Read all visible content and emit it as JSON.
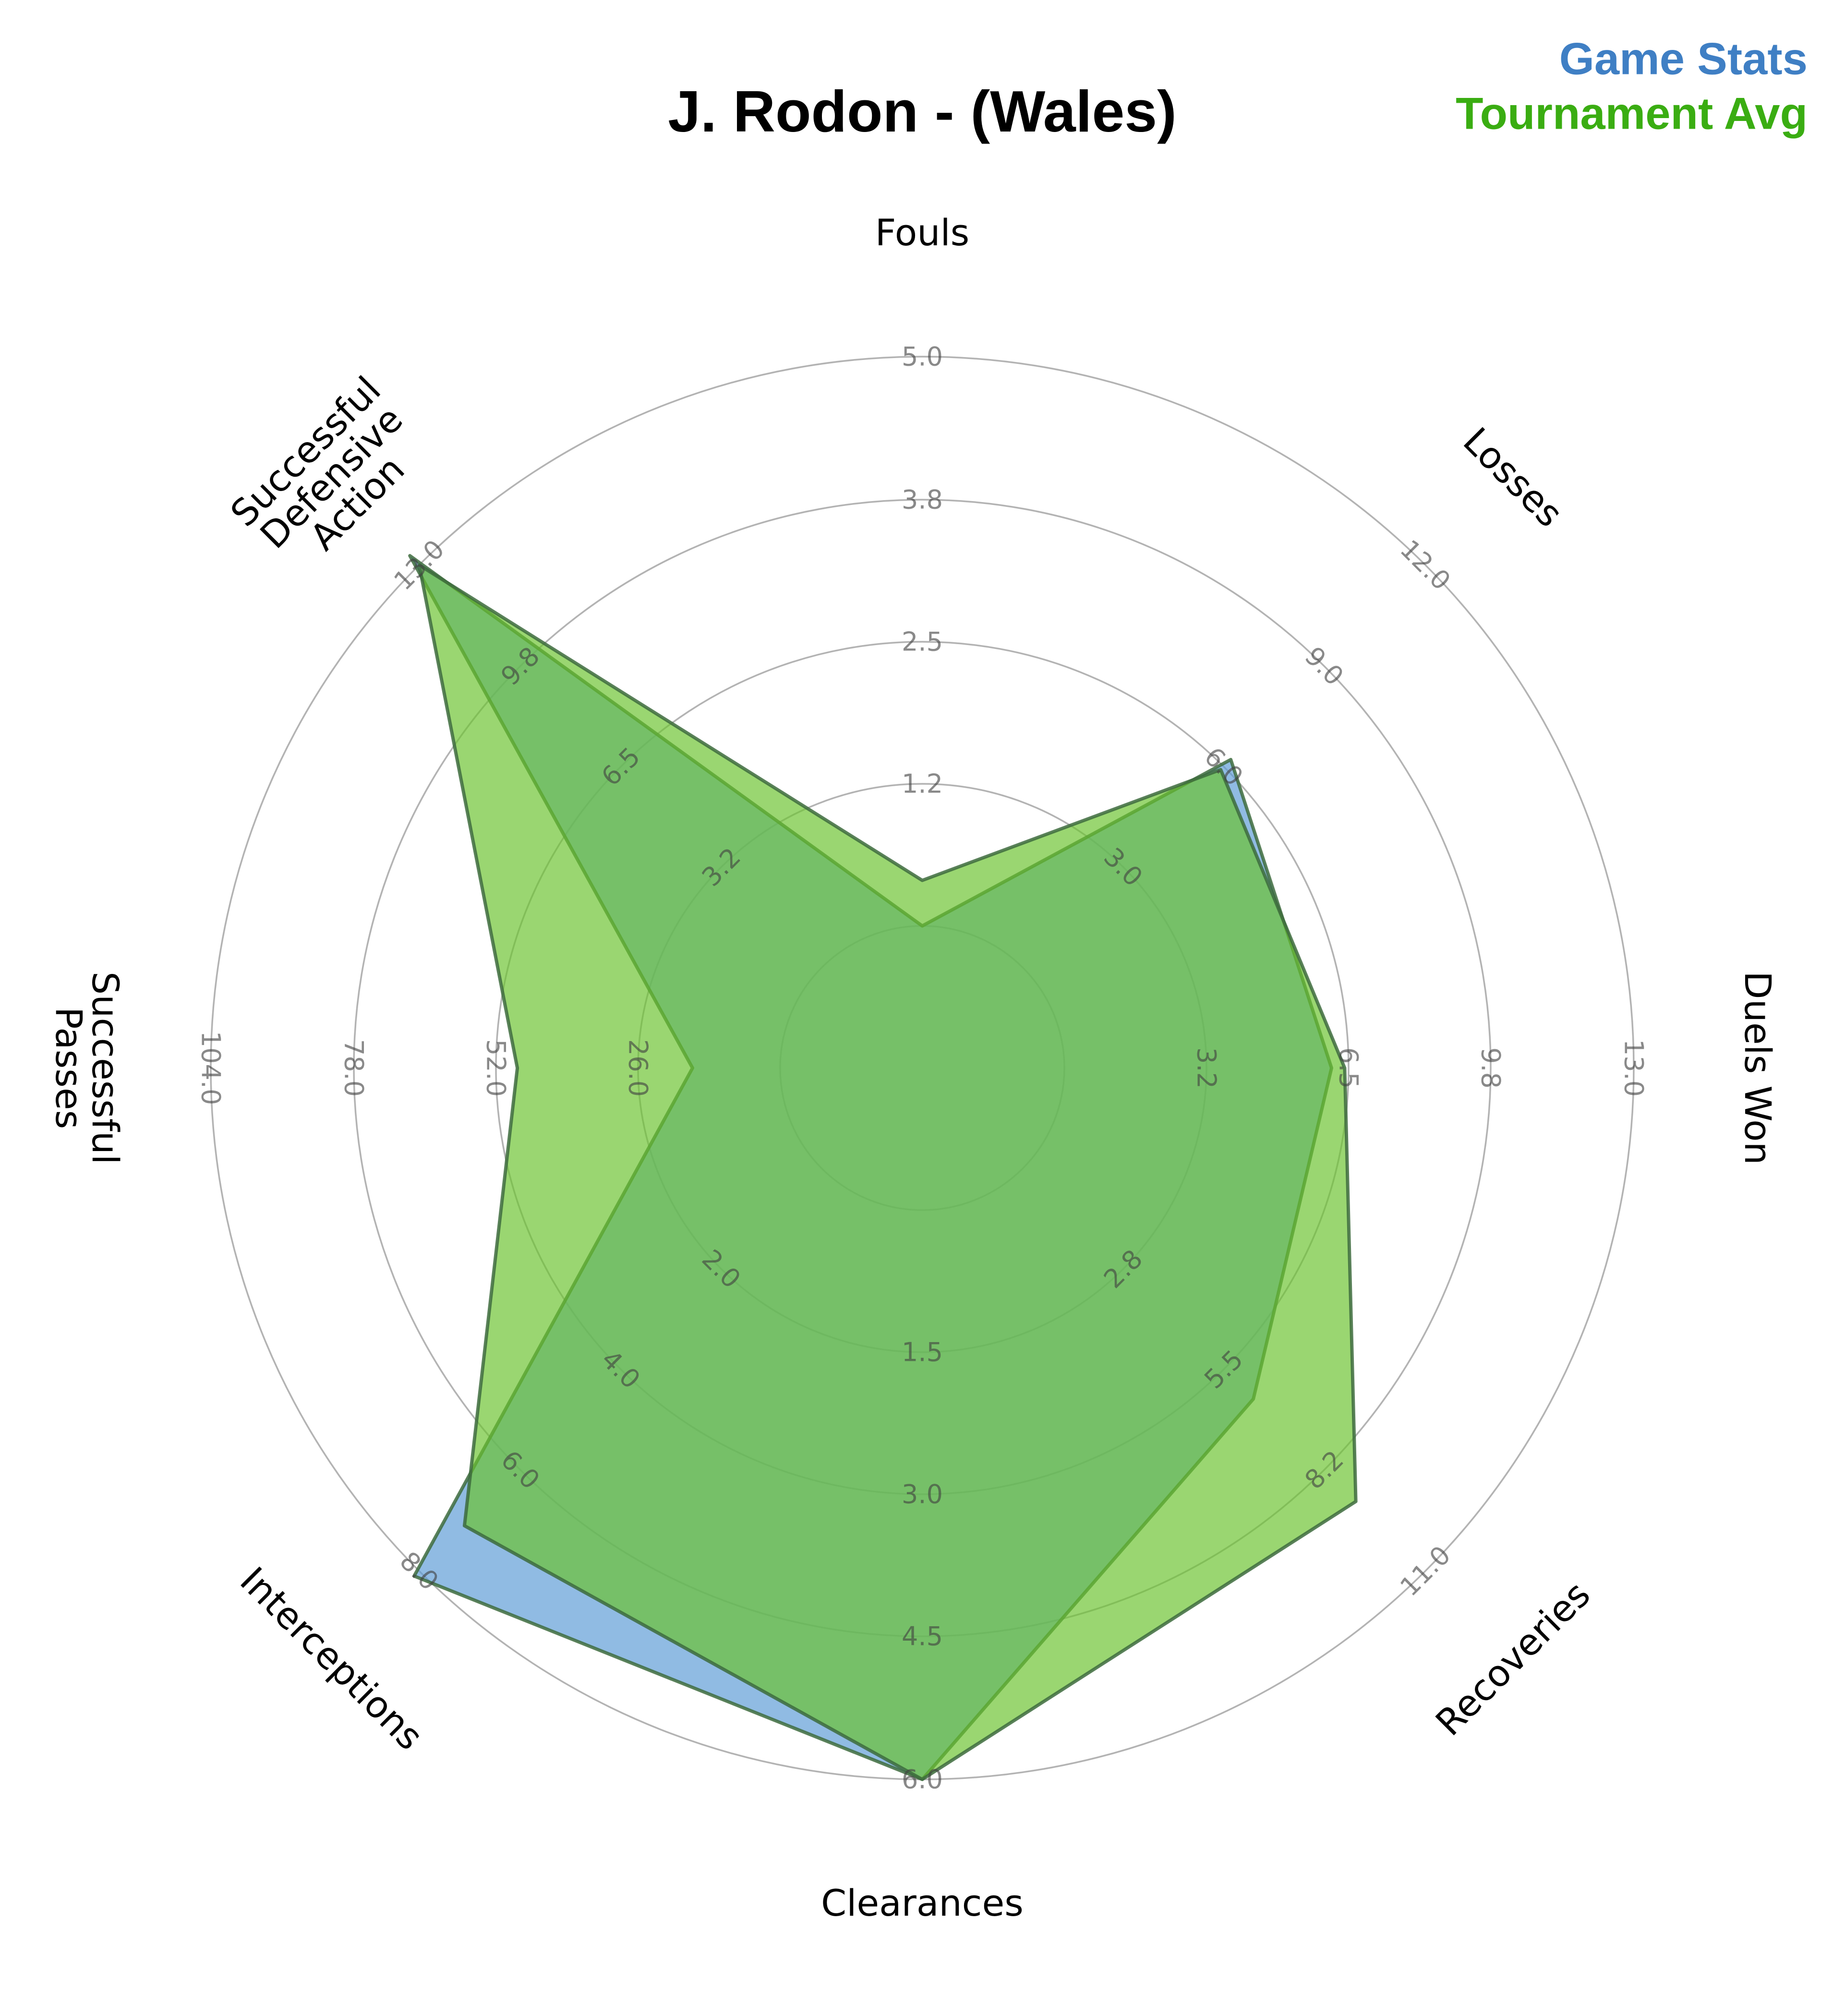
{
  "chart_data": {
    "type": "radar",
    "title": "J. Rodon - (Wales)",
    "axes": [
      {
        "label": "Fouls",
        "min": 0,
        "max": 5,
        "ticks": [
          "1.2",
          "2.5",
          "3.8",
          "5.0"
        ]
      },
      {
        "label": "Losses",
        "min": 0,
        "max": 12,
        "ticks": [
          "3.0",
          "6.0",
          "9.0",
          "12.0"
        ]
      },
      {
        "label": "Duels Won",
        "min": 0,
        "max": 13,
        "ticks": [
          "3.2",
          "6.5",
          "9.8",
          "13.0"
        ]
      },
      {
        "label": "Recoveries",
        "min": 0,
        "max": 11,
        "ticks": [
          "2.8",
          "5.5",
          "8.2",
          "11.0"
        ]
      },
      {
        "label": "Clearances",
        "min": 0,
        "max": 6,
        "ticks": [
          "1.5",
          "3.0",
          "4.5",
          "6.0"
        ]
      },
      {
        "label": "Interceptions",
        "min": 0,
        "max": 8,
        "ticks": [
          "2.0",
          "4.0",
          "6.0",
          "8.0"
        ]
      },
      {
        "label": "Successful Passes",
        "min": 0,
        "max": 104,
        "ticks": [
          "26.0",
          "52.0",
          "78.0",
          "104.0"
        ]
      },
      {
        "label": "Successful Defensive Action",
        "min": 0,
        "max": 13,
        "ticks": [
          "3.2",
          "6.5",
          "9.8",
          "13.0"
        ]
      }
    ],
    "series": [
      {
        "name": "Game Stats",
        "color": "#3f7fc4",
        "fill": "#5b9bd5",
        "values": [
          0,
          6.2,
          6.1,
          6.3,
          6,
          8.1,
          16,
          13.3
        ]
      },
      {
        "name": "Tournament Avg",
        "color": "#3aad12",
        "fill": "#6ac22e",
        "values": [
          0.4,
          5.9,
          6.4,
          9.1,
          6,
          7.1,
          48,
          13
        ]
      }
    ],
    "grid": true,
    "legend_position": "top-right"
  }
}
